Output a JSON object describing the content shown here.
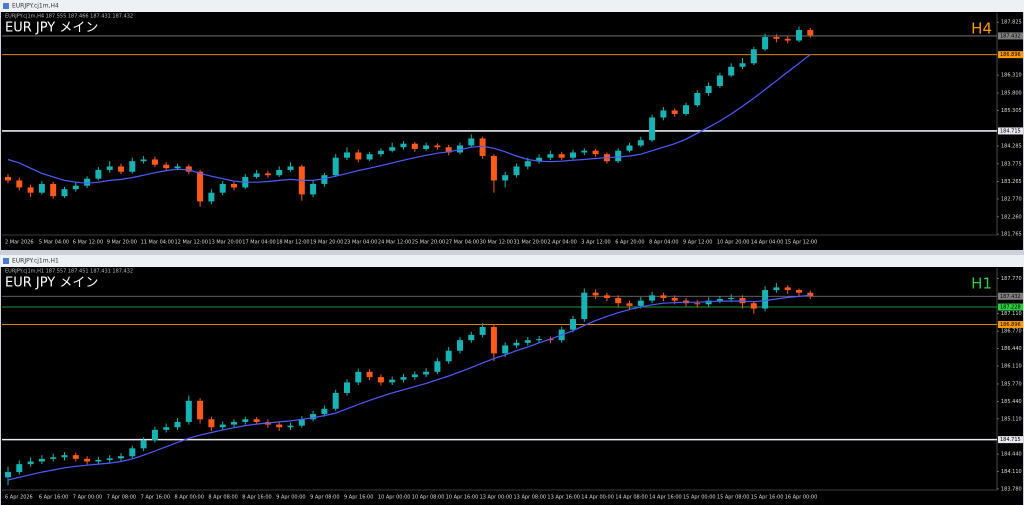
{
  "chart_data": [
    {
      "type": "candlestick",
      "window_title": "EURJPY.cj1m,H4",
      "info": "EURJPY.cj1m,H4 187.555 187.466 187.431 187.432",
      "symbol": "EUR JPY メイン",
      "timeframe": "H4",
      "timeframe_color": "#ff9900",
      "up_color": "#18b4b4",
      "down_color": "#ff5a1a",
      "categories": [
        "2 Mar 2026",
        null,
        null,
        "5 Mar 04:00",
        null,
        null,
        "6 Mar 12:00",
        null,
        null,
        "9 Mar 20:00",
        null,
        null,
        "11 Mar 04:00",
        null,
        null,
        "12 Mar 12:00",
        null,
        null,
        "13 Mar 20:00",
        null,
        null,
        "17 Mar 04:00",
        null,
        null,
        "18 Mar 12:00",
        null,
        null,
        "19 Mar 20:00",
        null,
        null,
        "23 Mar 04:00",
        null,
        null,
        "24 Mar 12:00",
        null,
        null,
        "25 Mar 20:00",
        null,
        null,
        "27 Mar 04:00",
        null,
        null,
        "30 Mar 12:00",
        null,
        null,
        "31 Mar 20:00",
        null,
        null,
        "2 Apr 04:00",
        null,
        null,
        "3 Apr 12:00",
        null,
        null,
        "6 Apr 20:00",
        null,
        null,
        "8 Apr 04:00",
        null,
        null,
        "9 Apr 12:00",
        null,
        null,
        "10 Apr 20:00",
        null,
        null,
        "14 Apr 04:00",
        null,
        null,
        "15 Apr 12:00",
        null,
        null
      ],
      "open": [
        183.4,
        183.3,
        183.1,
        182.95,
        183.2,
        182.85,
        183.05,
        183.15,
        183.35,
        183.6,
        183.7,
        183.55,
        183.85,
        183.9,
        183.75,
        183.65,
        183.7,
        183.55,
        182.7,
        182.95,
        183.2,
        183.1,
        183.4,
        183.5,
        183.45,
        183.6,
        183.7,
        182.9,
        183.2,
        183.45,
        183.95,
        184.1,
        183.9,
        184.05,
        184.15,
        184.25,
        184.35,
        184.2,
        184.3,
        184.25,
        184.1,
        184.3,
        184.5,
        184.0,
        183.3,
        183.45,
        183.7,
        183.85,
        183.95,
        184.05,
        183.95,
        184.1,
        184.15,
        184.05,
        183.85,
        184.15,
        184.3,
        184.45,
        185.1,
        185.3,
        185.2,
        185.45,
        185.8,
        186.0,
        186.3,
        186.55,
        186.65,
        187.05,
        187.4,
        187.35,
        187.3,
        187.6
      ],
      "high": [
        183.48,
        183.38,
        183.18,
        183.28,
        183.26,
        183.12,
        183.25,
        183.42,
        183.68,
        183.85,
        183.78,
        183.95,
        184.0,
        183.98,
        183.82,
        183.78,
        183.76,
        183.6,
        183.05,
        183.28,
        183.26,
        183.48,
        183.6,
        183.58,
        183.7,
        183.82,
        183.75,
        183.28,
        183.52,
        184.05,
        184.25,
        184.18,
        184.12,
        184.22,
        184.38,
        184.42,
        184.4,
        184.38,
        184.36,
        184.32,
        184.38,
        184.62,
        184.55,
        184.05,
        183.55,
        183.78,
        183.95,
        184.05,
        184.15,
        184.12,
        184.18,
        184.22,
        184.2,
        184.1,
        184.22,
        184.38,
        184.55,
        185.18,
        185.4,
        185.36,
        185.52,
        185.88,
        186.1,
        186.38,
        186.65,
        186.8,
        187.12,
        187.5,
        187.48,
        187.42,
        187.7,
        187.66
      ],
      "low": [
        183.22,
        183.02,
        182.82,
        182.9,
        182.78,
        182.8,
        182.98,
        183.08,
        183.3,
        183.52,
        183.48,
        183.5,
        183.78,
        183.68,
        183.58,
        183.6,
        183.48,
        182.55,
        182.62,
        182.88,
        183.02,
        183.05,
        183.35,
        183.38,
        183.4,
        183.55,
        182.72,
        182.82,
        183.12,
        183.4,
        183.88,
        183.82,
        183.85,
        183.98,
        184.1,
        184.18,
        184.12,
        184.15,
        184.18,
        184.02,
        184.05,
        184.25,
        183.92,
        182.95,
        183.1,
        183.38,
        183.62,
        183.78,
        183.88,
        183.88,
        183.9,
        184.02,
        183.98,
        183.78,
        183.8,
        184.1,
        184.25,
        184.4,
        185.02,
        185.12,
        185.15,
        185.4,
        185.72,
        185.95,
        186.25,
        186.48,
        186.6,
        187.0,
        187.25,
        187.22,
        187.25,
        187.38
      ],
      "close": [
        183.3,
        183.1,
        182.95,
        183.2,
        182.85,
        183.05,
        183.15,
        183.35,
        183.6,
        183.7,
        183.55,
        183.85,
        183.9,
        183.75,
        183.65,
        183.7,
        183.55,
        182.7,
        182.95,
        183.2,
        183.1,
        183.4,
        183.5,
        183.45,
        183.6,
        183.7,
        182.9,
        183.2,
        183.45,
        183.95,
        184.1,
        183.9,
        184.05,
        184.15,
        184.25,
        184.35,
        184.2,
        184.3,
        184.25,
        184.1,
        184.3,
        184.5,
        184.0,
        183.3,
        183.45,
        183.7,
        183.85,
        183.95,
        184.05,
        183.95,
        184.1,
        184.15,
        184.05,
        183.85,
        184.15,
        184.3,
        184.45,
        185.1,
        185.3,
        185.2,
        185.45,
        185.8,
        186.0,
        186.3,
        186.55,
        186.65,
        187.05,
        187.4,
        187.35,
        187.3,
        187.6,
        187.45
      ],
      "ma": {
        "color": "#4c5cff",
        "values": [
          183.9,
          183.8,
          183.65,
          183.5,
          183.4,
          183.3,
          183.25,
          183.22,
          183.25,
          183.3,
          183.33,
          183.38,
          183.45,
          183.52,
          183.58,
          183.62,
          183.6,
          183.5,
          183.42,
          183.35,
          183.28,
          183.25,
          183.25,
          183.27,
          183.3,
          183.33,
          183.3,
          183.3,
          183.35,
          183.42,
          183.5,
          183.58,
          183.65,
          183.72,
          183.8,
          183.88,
          183.95,
          184.02,
          184.08,
          184.12,
          184.18,
          184.25,
          184.28,
          184.22,
          184.12,
          184.0,
          183.9,
          183.85,
          183.84,
          183.85,
          183.88,
          183.9,
          183.93,
          183.95,
          183.97,
          184.0,
          184.05,
          184.15,
          184.25,
          184.35,
          184.48,
          184.65,
          184.82,
          185.0,
          185.2,
          185.42,
          185.65,
          185.9,
          186.15,
          186.4,
          186.65,
          186.9
        ]
      },
      "ylim": [
        181.74,
        188.03
      ],
      "yticks": [
        181.765,
        {
          "value": 182.26,
          "label": "182.260"
        },
        {
          "value": 182.77,
          "label": "182.770"
        },
        183.265,
        183.775,
        184.285,
        185.305,
        {
          "value": 185.8,
          "label": "185.800"
        },
        {
          "value": 186.31,
          "label": "186.310"
        },
        187.825
      ],
      "hlines": [
        {
          "value": 187.432,
          "color": "#808080"
        },
        {
          "value": 186.896,
          "color": "#ff9900"
        },
        {
          "value": 184.715,
          "color": "#e8e8f0"
        }
      ]
    },
    {
      "type": "candlestick",
      "window_title": "EURJPY.cj1m,H1",
      "info": "EURJPY.cj1m,H1 187.557 187.451 187.431 187.432",
      "symbol": "EUR JPY メイン",
      "timeframe": "H1",
      "timeframe_color": "#2ecc40",
      "up_color": "#18b4b4",
      "down_color": "#ff5a1a",
      "categories": [
        "6 Apr 2026",
        null,
        null,
        "6 Apr 16:00",
        null,
        null,
        "7 Apr 00:00",
        null,
        null,
        "7 Apr 08:00",
        null,
        null,
        "7 Apr 16:00",
        null,
        null,
        "8 Apr 00:00",
        null,
        null,
        "8 Apr 08:00",
        null,
        null,
        "8 Apr 16:00",
        null,
        null,
        "9 Apr 00:00",
        null,
        null,
        "9 Apr 08:00",
        null,
        null,
        "9 Apr 16:00",
        null,
        null,
        "10 Apr 00:00",
        null,
        null,
        "10 Apr 08:00",
        null,
        null,
        "10 Apr 16:00",
        null,
        null,
        "13 Apr 00:00",
        null,
        null,
        "13 Apr 08:00",
        null,
        null,
        "13 Apr 16:00",
        null,
        null,
        "14 Apr 00:00",
        null,
        null,
        "14 Apr 08:00",
        null,
        null,
        "14 Apr 16:00",
        null,
        null,
        "15 Apr 00:00",
        null,
        null,
        "15 Apr 08:00",
        null,
        null,
        "15 Apr 16:00",
        null,
        null,
        "16 Apr 00:00",
        null,
        null
      ],
      "open": [
        184.0,
        184.1,
        184.25,
        184.3,
        184.35,
        184.38,
        184.42,
        184.35,
        184.3,
        184.33,
        184.36,
        184.4,
        184.55,
        184.7,
        184.9,
        184.95,
        185.05,
        185.45,
        185.1,
        184.95,
        185.0,
        185.05,
        185.1,
        185.05,
        185.0,
        184.95,
        184.98,
        185.1,
        185.2,
        185.3,
        185.6,
        185.8,
        186.0,
        185.9,
        185.8,
        185.85,
        185.9,
        185.95,
        186.0,
        186.2,
        186.4,
        186.6,
        186.7,
        186.85,
        186.35,
        186.5,
        186.55,
        186.6,
        186.62,
        186.6,
        186.8,
        187.0,
        187.5,
        187.45,
        187.4,
        187.3,
        187.25,
        187.35,
        187.45,
        187.4,
        187.35,
        187.3,
        187.28,
        187.35,
        187.38,
        187.4,
        187.3,
        187.2,
        187.55,
        187.6,
        187.55,
        187.5
      ],
      "high": [
        184.2,
        184.32,
        184.38,
        184.42,
        184.45,
        184.48,
        184.47,
        184.4,
        184.39,
        184.42,
        184.46,
        184.6,
        184.76,
        184.96,
        185.02,
        185.12,
        185.55,
        185.5,
        185.15,
        185.06,
        185.1,
        185.15,
        185.14,
        185.1,
        185.04,
        185.04,
        185.16,
        185.26,
        185.36,
        185.66,
        185.86,
        186.06,
        186.05,
        185.95,
        185.91,
        185.96,
        186.01,
        186.07,
        186.26,
        186.47,
        186.66,
        186.76,
        186.92,
        186.9,
        186.56,
        186.61,
        186.66,
        186.68,
        186.67,
        186.86,
        187.06,
        187.58,
        187.56,
        187.5,
        187.45,
        187.35,
        187.42,
        187.52,
        187.5,
        187.45,
        187.4,
        187.36,
        187.41,
        187.44,
        187.47,
        187.45,
        187.34,
        187.62,
        187.68,
        187.64,
        187.58,
        187.54
      ],
      "low": [
        183.85,
        184.05,
        184.2,
        184.25,
        184.3,
        184.32,
        184.3,
        184.24,
        184.26,
        184.28,
        184.31,
        184.36,
        184.5,
        184.66,
        184.85,
        184.9,
        185.0,
        185.02,
        184.88,
        184.9,
        184.95,
        185.0,
        185.0,
        184.94,
        184.88,
        184.9,
        184.94,
        185.06,
        185.15,
        185.26,
        185.55,
        185.75,
        185.84,
        185.74,
        185.75,
        185.8,
        185.85,
        185.9,
        185.96,
        186.15,
        186.35,
        186.55,
        186.65,
        186.2,
        186.28,
        186.45,
        186.5,
        186.55,
        186.54,
        186.55,
        186.75,
        186.95,
        187.38,
        187.34,
        187.22,
        187.18,
        187.2,
        187.3,
        187.34,
        187.28,
        187.24,
        187.22,
        187.23,
        187.3,
        187.32,
        187.2,
        187.1,
        187.15,
        187.5,
        187.48,
        187.44,
        187.38
      ],
      "close": [
        184.1,
        184.25,
        184.3,
        184.35,
        184.38,
        184.42,
        184.35,
        184.3,
        184.33,
        184.36,
        184.4,
        184.55,
        184.7,
        184.9,
        184.95,
        185.05,
        185.45,
        185.1,
        184.95,
        185.0,
        185.05,
        185.1,
        185.05,
        185.0,
        184.95,
        184.98,
        185.1,
        185.2,
        185.3,
        185.6,
        185.8,
        186.0,
        185.9,
        185.8,
        185.85,
        185.9,
        185.95,
        186.0,
        186.2,
        186.4,
        186.6,
        186.7,
        186.85,
        186.35,
        186.5,
        186.55,
        186.6,
        186.62,
        186.6,
        186.8,
        187.0,
        187.5,
        187.45,
        187.4,
        187.3,
        187.25,
        187.35,
        187.45,
        187.4,
        187.35,
        187.3,
        187.28,
        187.35,
        187.38,
        187.4,
        187.3,
        187.2,
        187.55,
        187.6,
        187.55,
        187.5,
        187.43
      ],
      "ma": {
        "color": "#4c5cff",
        "values": [
          183.95,
          184.0,
          184.05,
          184.1,
          184.14,
          184.18,
          184.21,
          184.23,
          184.25,
          184.27,
          184.3,
          184.35,
          184.42,
          184.5,
          184.58,
          184.66,
          184.74,
          184.8,
          184.85,
          184.9,
          184.94,
          184.98,
          185.01,
          185.03,
          185.05,
          185.07,
          185.1,
          185.13,
          185.17,
          185.22,
          185.3,
          185.38,
          185.46,
          185.53,
          185.6,
          185.66,
          185.72,
          185.78,
          185.85,
          185.92,
          186.0,
          186.08,
          186.17,
          186.25,
          186.32,
          186.4,
          186.47,
          186.55,
          186.62,
          186.7,
          186.78,
          186.88,
          186.97,
          187.05,
          187.12,
          187.18,
          187.23,
          187.27,
          187.3,
          187.31,
          187.32,
          187.32,
          187.33,
          187.34,
          187.34,
          187.34,
          187.33,
          187.35,
          187.38,
          187.41,
          187.43,
          187.45
        ]
      },
      "ylim": [
        183.76,
        187.93
      ],
      "yticks": [
        {
          "value": 183.78,
          "label": "183.780"
        },
        {
          "value": 184.11,
          "label": "184.110"
        },
        {
          "value": 184.44,
          "label": "184.440"
        },
        {
          "value": 185.11,
          "label": "185.110"
        },
        {
          "value": 185.44,
          "label": "185.440"
        },
        {
          "value": 185.77,
          "label": "185.770"
        },
        {
          "value": 186.11,
          "label": "186.110"
        },
        {
          "value": 186.44,
          "label": "186.440"
        },
        {
          "value": 186.77,
          "label": "186.770"
        },
        {
          "value": 187.11,
          "label": "187.110"
        },
        {
          "value": 187.77,
          "label": "187.770"
        }
      ],
      "hlines": [
        {
          "value": 187.432,
          "color": "#808080"
        },
        {
          "value": 187.228,
          "color": "#2ecc40"
        },
        {
          "value": 186.896,
          "color": "#ff9900"
        },
        {
          "value": 184.715,
          "color": "#e8e8f0"
        }
      ]
    }
  ]
}
